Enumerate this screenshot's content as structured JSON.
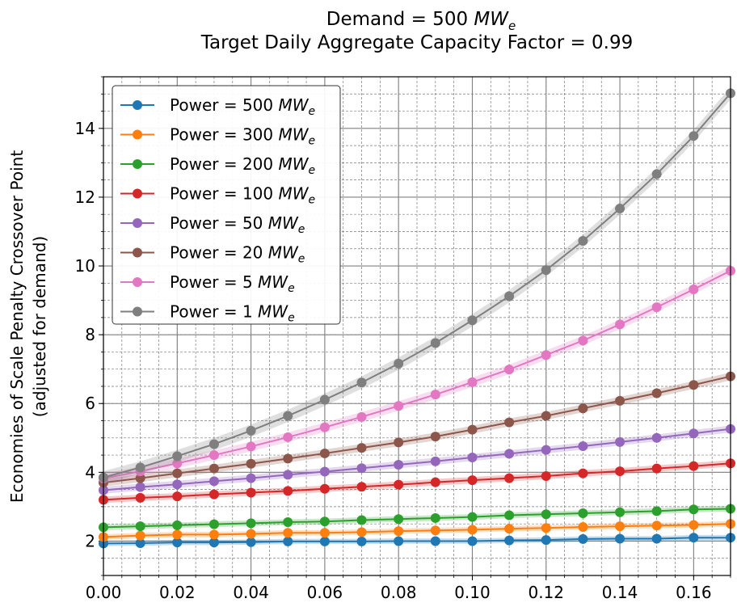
{
  "chart_data": {
    "type": "line",
    "title_line1_prefix": "Demand = 500 ",
    "title_line1_unit": "MW",
    "title_line1_sub": "e",
    "title_line2": "Target Daily Aggregate Capacity Factor = 0.99",
    "ylabel_line1": "Economies of Scale Penalty Crossover Point",
    "ylabel_line2": "(adjusted for demand)",
    "xlabel": "",
    "xlim": [
      0.0,
      0.17
    ],
    "ylim": [
      1.0,
      15.5
    ],
    "x_ticks": [
      "0.00",
      "0.02",
      "0.04",
      "0.06",
      "0.08",
      "0.10",
      "0.12",
      "0.14",
      "0.16"
    ],
    "y_ticks": [
      "2",
      "4",
      "6",
      "8",
      "10",
      "12",
      "14"
    ],
    "grid": true,
    "legend_position": "top-left",
    "x": [
      0.0,
      0.01,
      0.02,
      0.03,
      0.04,
      0.05,
      0.06,
      0.07,
      0.08,
      0.09,
      0.1,
      0.11,
      0.12,
      0.13,
      0.14,
      0.15,
      0.16,
      0.17
    ],
    "series": [
      {
        "name_prefix": "Power = 500 ",
        "name_unit": "MW",
        "name_sub": "e",
        "color": "#1f77b4",
        "values": [
          1.93,
          1.94,
          1.96,
          1.96,
          1.97,
          1.99,
          1.99,
          1.99,
          2.0,
          2.0,
          2.0,
          2.02,
          2.03,
          2.06,
          2.07,
          2.07,
          2.1,
          2.1
        ]
      },
      {
        "name_prefix": "Power = 300 ",
        "name_unit": "MW",
        "name_sub": "e",
        "color": "#ff7f0e",
        "values": [
          2.12,
          2.16,
          2.19,
          2.19,
          2.21,
          2.24,
          2.24,
          2.26,
          2.29,
          2.31,
          2.33,
          2.36,
          2.38,
          2.41,
          2.43,
          2.45,
          2.47,
          2.5
        ]
      },
      {
        "name_prefix": "Power = 200 ",
        "name_unit": "MW",
        "name_sub": "e",
        "color": "#2ca02c",
        "values": [
          2.4,
          2.43,
          2.46,
          2.49,
          2.52,
          2.55,
          2.57,
          2.61,
          2.64,
          2.67,
          2.7,
          2.75,
          2.78,
          2.81,
          2.84,
          2.87,
          2.92,
          2.94
        ]
      },
      {
        "name_prefix": "Power = 100 ",
        "name_unit": "MW",
        "name_sub": "e",
        "color": "#d62728",
        "values": [
          3.2,
          3.26,
          3.3,
          3.36,
          3.41,
          3.46,
          3.52,
          3.58,
          3.64,
          3.71,
          3.77,
          3.83,
          3.89,
          3.97,
          4.03,
          4.11,
          4.18,
          4.26
        ]
      },
      {
        "name_prefix": "Power = 50 ",
        "name_unit": "MW",
        "name_sub": "e",
        "color": "#9467bd",
        "values": [
          3.48,
          3.57,
          3.65,
          3.74,
          3.83,
          3.93,
          4.02,
          4.12,
          4.22,
          4.32,
          4.43,
          4.54,
          4.65,
          4.76,
          4.88,
          5.0,
          5.13,
          5.26
        ]
      },
      {
        "name_prefix": "Power = 20 ",
        "name_unit": "MW",
        "name_sub": "e",
        "color": "#8c564b",
        "values": [
          3.7,
          3.83,
          3.97,
          4.11,
          4.25,
          4.4,
          4.55,
          4.71,
          4.87,
          5.04,
          5.24,
          5.45,
          5.64,
          5.86,
          6.08,
          6.3,
          6.54,
          6.79
        ]
      },
      {
        "name_prefix": "Power = 5 ",
        "name_unit": "MW",
        "name_sub": "e",
        "color": "#e377c2",
        "values": [
          3.82,
          4.03,
          4.26,
          4.5,
          4.75,
          5.02,
          5.31,
          5.61,
          5.93,
          6.26,
          6.62,
          6.99,
          7.41,
          7.83,
          8.3,
          8.8,
          9.32,
          9.86
        ]
      },
      {
        "name_prefix": "Power = 1 ",
        "name_unit": "MW",
        "name_sub": "e",
        "color": "#7f7f7f",
        "values": [
          3.85,
          4.14,
          4.47,
          4.82,
          5.21,
          5.64,
          6.11,
          6.61,
          7.16,
          7.76,
          8.42,
          9.12,
          9.88,
          10.73,
          11.67,
          12.67,
          13.78,
          15.02
        ]
      }
    ]
  }
}
